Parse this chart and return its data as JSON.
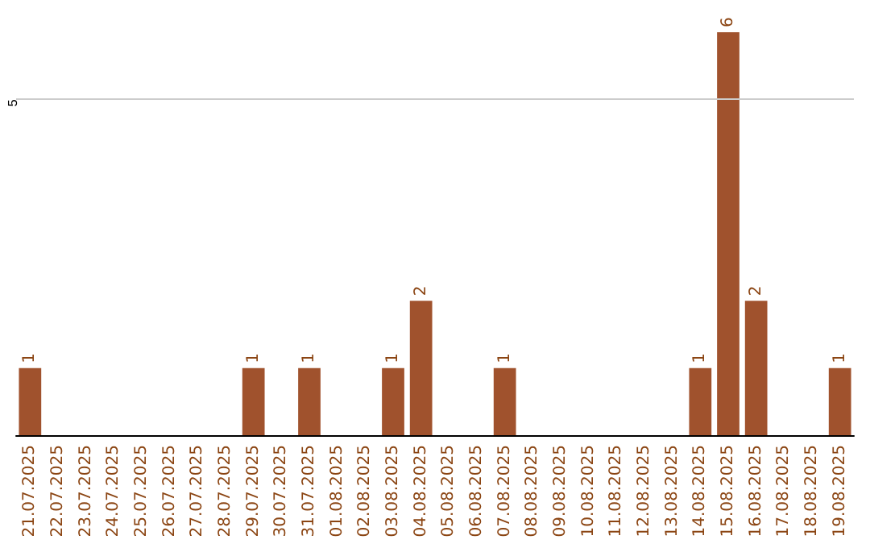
{
  "chart_data": {
    "type": "bar",
    "categories": [
      "21.07.2025",
      "22.07.2025",
      "23.07.2025",
      "24.07.2025",
      "25.07.2025",
      "26.07.2025",
      "27.07.2025",
      "28.07.2025",
      "29.07.2025",
      "30.07.2025",
      "31.07.2025",
      "01.08.2025",
      "02.08.2025",
      "03.08.2025",
      "04.08.2025",
      "05.08.2025",
      "06.08.2025",
      "07.08.2025",
      "08.08.2025",
      "09.08.2025",
      "10.08.2025",
      "11.08.2025",
      "12.08.2025",
      "13.08.2025",
      "14.08.2025",
      "15.08.2025",
      "16.08.2025",
      "17.08.2025",
      "18.08.2025",
      "19.08.2025"
    ],
    "values": [
      1,
      0,
      0,
      0,
      0,
      0,
      0,
      0,
      1,
      0,
      1,
      0,
      0,
      1,
      2,
      0,
      0,
      1,
      0,
      0,
      0,
      0,
      0,
      0,
      1,
      6,
      2,
      0,
      0,
      1
    ],
    "color": "#a0522d",
    "value_labels": [
      "1",
      null,
      null,
      null,
      null,
      null,
      null,
      null,
      "1",
      null,
      "1",
      null,
      null,
      "1",
      "2",
      null,
      null,
      "1",
      null,
      null,
      null,
      null,
      null,
      null,
      "1",
      "6",
      "2",
      null,
      null,
      "1"
    ],
    "ref_lines": [
      {
        "axis": "y",
        "value": 5,
        "label": "5",
        "color": "#cccccc"
      }
    ]
  }
}
